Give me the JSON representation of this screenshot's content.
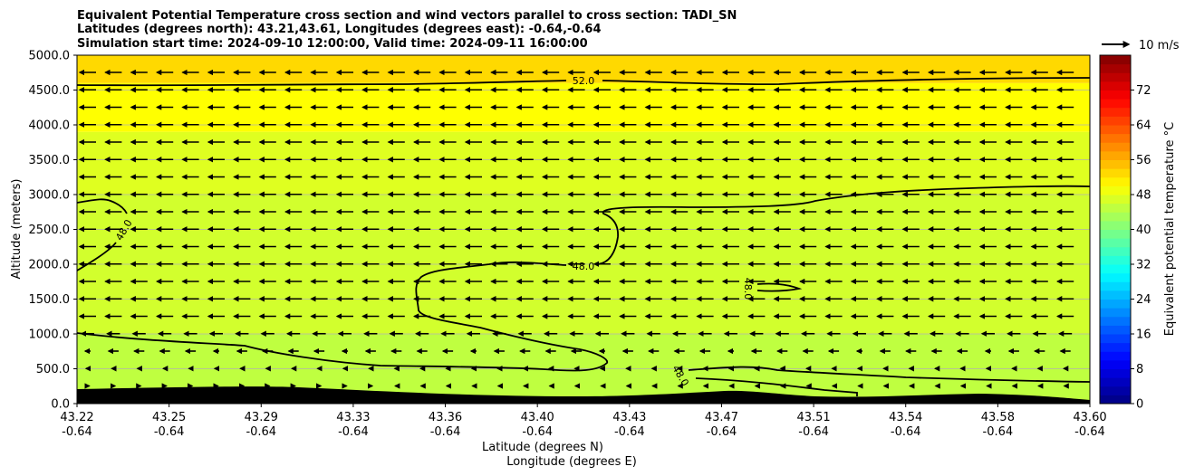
{
  "chart_data": {
    "type": "heatmap",
    "title_lines": [
      "Equivalent Potential Temperature cross section and wind vectors parallel to cross section: TADI_SN",
      "Latitudes (degrees north): 43.21,43.61, Longitudes (degrees east): -0.64,-0.64",
      "Simulation start time: 2024-09-10 12:00:00, Valid time: 2024-09-11 16:00:00"
    ],
    "xlabel_lines": [
      "Latitude (degrees N)",
      "Longitude (degrees E)"
    ],
    "ylabel": "Altitude (meters)",
    "x_range": [
      43.22,
      43.6
    ],
    "x_tick_latitudes": [
      "43.22",
      "43.25",
      "43.29",
      "43.33",
      "43.36",
      "43.40",
      "43.43",
      "43.47",
      "43.51",
      "43.54",
      "43.58",
      "43.60"
    ],
    "x_tick_longitudes": [
      "-0.64",
      "-0.64",
      "-0.64",
      "-0.64",
      "-0.64",
      "-0.64",
      "-0.64",
      "-0.64",
      "-0.64",
      "-0.64",
      "-0.64",
      "-0.64"
    ],
    "ylim": [
      0,
      5000
    ],
    "y_ticks": [
      "0.0",
      "500.0",
      "1000.0",
      "1500.0",
      "2000.0",
      "2500.0",
      "3000.0",
      "3500.0",
      "4000.0",
      "4500.0",
      "5000.0"
    ],
    "grid": "horizontal",
    "colorbar": {
      "label": "Equivalent potential temperature °C",
      "range": [
        0,
        80
      ],
      "ticks": [
        "0",
        "8",
        "16",
        "24",
        "32",
        "40",
        "48",
        "56",
        "64",
        "72"
      ],
      "colormap": "jet"
    },
    "quiver_key": {
      "label": "10 m/s",
      "speed_ms": 10
    },
    "contours": [
      {
        "level": 52,
        "label": "52.0"
      },
      {
        "level": 48,
        "label": "48.0"
      }
    ],
    "field_bands": [
      {
        "from_m": 0,
        "to_m": 1000,
        "theta_e": 45
      },
      {
        "from_m": 1000,
        "to_m": 3000,
        "theta_e": 46.5
      },
      {
        "from_m": 3000,
        "to_m": 3900,
        "theta_e": 47.5
      },
      {
        "from_m": 3900,
        "to_m": 4600,
        "theta_e": 50
      },
      {
        "from_m": 4600,
        "to_m": 5000,
        "theta_e": 53
      }
    ],
    "terrain_color": "#000000",
    "vector_color": "#000000"
  }
}
